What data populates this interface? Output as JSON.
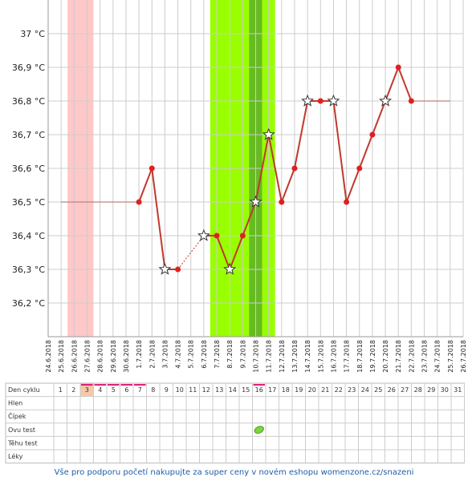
{
  "chart_data": {
    "type": "line",
    "y_unit": "°C",
    "y_ticks": [
      "37 °C",
      "36,9 °C",
      "36,8 °C",
      "36,7 °C",
      "36,6 °C",
      "36,5 °C",
      "36,4 °C",
      "36,3 °C",
      "36,2 °C"
    ],
    "y_tick_values": [
      37.0,
      36.9,
      36.8,
      36.7,
      36.6,
      36.5,
      36.4,
      36.3,
      36.2
    ],
    "ylim": [
      36.1,
      37.1
    ],
    "grid": true,
    "dates": [
      "24.6.2018",
      "25.6.2018",
      "26.6.2018",
      "27.6.2018",
      "28.6.2018",
      "29.6.2018",
      "30.6.2018",
      "1.7.2018",
      "2.7.2018",
      "3.7.2018",
      "4.7.2018",
      "5.7.2018",
      "6.7.2018",
      "7.7.2018",
      "8.7.2018",
      "9.7.2018",
      "10.7.2018",
      "11.7.2018",
      "12.7.2018",
      "13.7.2018",
      "14.7.2018",
      "15.7.2018",
      "16.7.2018",
      "17.7.2018",
      "18.7.2018",
      "19.7.2018",
      "20.7.2018",
      "21.7.2018",
      "22.7.2018",
      "23.7.2018",
      "24.7.2018",
      "25.7.2018",
      "26.7.2018"
    ],
    "series": [
      {
        "values": [
          {
            "date": "1.7.2018",
            "y": 36.5,
            "marker": "dot"
          },
          {
            "date": "2.7.2018",
            "y": 36.6,
            "marker": "dot"
          },
          {
            "date": "3.7.2018",
            "y": 36.3,
            "marker": "star"
          },
          {
            "date": "4.7.2018",
            "y": 36.3,
            "marker": "dot"
          },
          {
            "date": "6.7.2018",
            "y": 36.4,
            "marker": "star",
            "dashed_from_previous": true
          },
          {
            "date": "7.7.2018",
            "y": 36.4,
            "marker": "dot"
          },
          {
            "date": "8.7.2018",
            "y": 36.3,
            "marker": "star"
          },
          {
            "date": "9.7.2018",
            "y": 36.4,
            "marker": "dot"
          },
          {
            "date": "10.7.2018",
            "y": 36.5,
            "marker": "star"
          },
          {
            "date": "11.7.2018",
            "y": 36.7,
            "marker": "star"
          },
          {
            "date": "12.7.2018",
            "y": 36.5,
            "marker": "dot"
          },
          {
            "date": "13.7.2018",
            "y": 36.6,
            "marker": "dot"
          },
          {
            "date": "14.7.2018",
            "y": 36.8,
            "marker": "star"
          },
          {
            "date": "15.7.2018",
            "y": 36.8,
            "marker": "dot"
          },
          {
            "date": "16.7.2018",
            "y": 36.8,
            "marker": "star"
          },
          {
            "date": "17.7.2018",
            "y": 36.5,
            "marker": "dot"
          },
          {
            "date": "18.7.2018",
            "y": 36.6,
            "marker": "dot"
          },
          {
            "date": "19.7.2018",
            "y": 36.7,
            "marker": "dot"
          },
          {
            "date": "20.7.2018",
            "y": 36.8,
            "marker": "star"
          },
          {
            "date": "21.7.2018",
            "y": 36.9,
            "marker": "dot"
          },
          {
            "date": "22.7.2018",
            "y": 36.8,
            "marker": "dot"
          }
        ]
      }
    ],
    "reference_lines": [
      {
        "from": "25.6.2018",
        "to": "1.7.2018",
        "y": 36.5
      },
      {
        "from": "22.7.2018",
        "to": "25.7.2018",
        "y": 36.8
      }
    ],
    "bands": [
      {
        "from": "25.6.2018",
        "to": "26.6.2018",
        "color": "#ffc8c8"
      },
      {
        "from": "6.7.2018",
        "to": "10.7.2018",
        "color": "#99ff00"
      },
      {
        "from": "9.7.2018",
        "to": "9.7.2018",
        "color": "#66bb22"
      }
    ],
    "colors": {
      "line": "#c0392b",
      "marker": "#e02020",
      "reference_line": "#c08080",
      "grid": "#cccccc",
      "fertile_band": "#99ff00",
      "ovulation_band": "#66bb22",
      "period_band": "#ffc8c8",
      "period_marker": "#e0207a"
    }
  },
  "cycle_table": {
    "header_label": "Den cyklu",
    "days": [
      "1",
      "2",
      "3",
      "4",
      "5",
      "6",
      "7",
      "8",
      "9",
      "10",
      "11",
      "12",
      "13",
      "14",
      "15",
      "16",
      "17",
      "18",
      "19",
      "20",
      "21",
      "22",
      "23",
      "24",
      "25",
      "26",
      "27",
      "28",
      "29",
      "30",
      "31"
    ],
    "highlighted_day": "3",
    "period_days": [
      "3",
      "4",
      "5",
      "6",
      "7"
    ],
    "marked_day": "16",
    "rows": [
      "Hlen",
      "Čípek",
      "Ovu test",
      "Těhu test",
      "Léky"
    ],
    "ovu_test_positive_day": "16",
    "ovu_icon": "green-leaf-icon"
  },
  "footer": {
    "promo_text": "Vše pro podporu početí nakupujte za super ceny v novém eshopu womenzone.cz/snazeni"
  }
}
